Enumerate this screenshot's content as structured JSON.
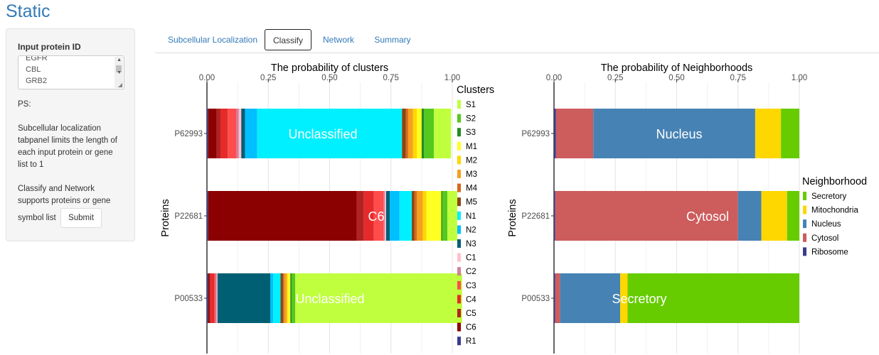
{
  "app": {
    "title": "Static"
  },
  "sidebar": {
    "input_label": "Input protein ID",
    "input_lines": [
      "EGFR",
      "CBL",
      "GRB2"
    ],
    "ps_label": "PS:",
    "note1_lines": [
      "Subcellular localization",
      "tabpanel limits the length of",
      "each input protein or gene",
      "list to 1"
    ],
    "note2_lines": [
      "Classify and Network",
      "supports proteins or gene",
      "symbol list"
    ],
    "submit_label": "Submit"
  },
  "tabs": [
    {
      "label": "Subcellular Localization",
      "active": false
    },
    {
      "label": "Classify",
      "active": true
    },
    {
      "label": "Network",
      "active": false
    },
    {
      "label": "Summary",
      "active": false
    }
  ],
  "chart_data": [
    {
      "type": "bar",
      "orientation": "horizontal",
      "stacked": true,
      "title": "The probability of clusters",
      "ylabel": "Proteins",
      "categories": [
        "P62993",
        "P22681",
        "P00533"
      ],
      "xlim": [
        0,
        1
      ],
      "xticks": [
        "0.00",
        "0.25",
        "0.50",
        "0.75",
        "1.00"
      ],
      "legend": {
        "title": "Clusters",
        "position": "right"
      },
      "series_colors": {
        "R1": "#3b3b8c",
        "C6": "#8b0000",
        "C5": "#b22222",
        "C4": "#e62a2a",
        "C3": "#ff4c4c",
        "C2": "#d27fa0",
        "C1": "#ffc0cb",
        "N3": "#005f73",
        "N2": "#00bfff",
        "N1": "#00f0ff",
        "M5": "#8b4513",
        "M4": "#d2691e",
        "M3": "#f4a020",
        "M2": "#ffd700",
        "M1": "#ffff22",
        "S3": "#228b22",
        "S2": "#55c81e",
        "S1": "#c0ff3e"
      },
      "legend_order": [
        "S1",
        "S2",
        "S3",
        "M1",
        "M2",
        "M3",
        "M4",
        "M5",
        "N1",
        "N2",
        "N3",
        "C1",
        "C2",
        "C3",
        "C4",
        "C5",
        "C6",
        "R1"
      ],
      "bars": [
        {
          "category": "P62993",
          "label": "Unclassified",
          "segments": [
            [
              "R1",
              0.005
            ],
            [
              "C6",
              0.035
            ],
            [
              "C5",
              0.015
            ],
            [
              "C4",
              0.03
            ],
            [
              "C3",
              0.035
            ],
            [
              "C2",
              0.01
            ],
            [
              "C1",
              0.01
            ],
            [
              "N3",
              0.015
            ],
            [
              "N2",
              0.05
            ],
            [
              "N1",
              0.59
            ],
            [
              "M5",
              0.015
            ],
            [
              "M4",
              0.01
            ],
            [
              "M3",
              0.02
            ],
            [
              "M2",
              0.015
            ],
            [
              "M1",
              0.02
            ],
            [
              "S3",
              0.01
            ],
            [
              "S2",
              0.04
            ],
            [
              "S1",
              0.07
            ]
          ]
        },
        {
          "category": "P22681",
          "label": "C6",
          "segments": [
            [
              "R1",
              0.005
            ],
            [
              "C6",
              0.605
            ],
            [
              "C5",
              0.03
            ],
            [
              "C4",
              0.04
            ],
            [
              "C3",
              0.04
            ],
            [
              "C2",
              0.005
            ],
            [
              "C1",
              0.005
            ],
            [
              "N3",
              0.015
            ],
            [
              "N2",
              0.04
            ],
            [
              "N1",
              0.05
            ],
            [
              "M5",
              0.01
            ],
            [
              "M4",
              0.01
            ],
            [
              "M3",
              0.025
            ],
            [
              "M2",
              0.015
            ],
            [
              "M1",
              0.06
            ],
            [
              "S3",
              0.005
            ],
            [
              "S2",
              0.02
            ],
            [
              "S1",
              0.04
            ]
          ]
        },
        {
          "category": "P00533",
          "label": "Unclassified",
          "segments": [
            [
              "R1",
              0.005
            ],
            [
              "C6",
              0.005
            ],
            [
              "C5",
              0.005
            ],
            [
              "C4",
              0.015
            ],
            [
              "C3",
              0.005
            ],
            [
              "C2",
              0.005
            ],
            [
              "C1",
              0.003
            ],
            [
              "N3",
              0.215
            ],
            [
              "N2",
              0.012
            ],
            [
              "N1",
              0.03
            ],
            [
              "M5",
              0.01
            ],
            [
              "M4",
              0.005
            ],
            [
              "M3",
              0.01
            ],
            [
              "M2",
              0.005
            ],
            [
              "M1",
              0.01
            ],
            [
              "S3",
              0.005
            ],
            [
              "S2",
              0.015
            ],
            [
              "S1",
              0.68
            ]
          ]
        }
      ]
    },
    {
      "type": "bar",
      "orientation": "horizontal",
      "stacked": true,
      "title": "The probability of Neighborhoods",
      "ylabel": "Proteins",
      "categories": [
        "P62993",
        "P22681",
        "P00533"
      ],
      "xlim": [
        0,
        1
      ],
      "xticks": [
        "0.00",
        "0.25",
        "0.50",
        "0.75",
        "1.00"
      ],
      "legend": {
        "title": "Neighborhood",
        "position": "right"
      },
      "series_colors": {
        "Ribosome": "#3b3b8c",
        "Cytosol": "#cd5c5c",
        "Nucleus": "#4682b4",
        "Mitochondria": "#ffd700",
        "Secretory": "#66cc00"
      },
      "legend_order": [
        "Secretory",
        "Mitochondria",
        "Nucleus",
        "Cytosol",
        "Ribosome"
      ],
      "bars": [
        {
          "category": "P62993",
          "label": "Nucleus",
          "segments": [
            [
              "Ribosome",
              0.008
            ],
            [
              "Cytosol",
              0.152
            ],
            [
              "Nucleus",
              0.66
            ],
            [
              "Mitochondria",
              0.105
            ],
            [
              "Secretory",
              0.075
            ]
          ]
        },
        {
          "category": "P22681",
          "label": "Cytosol",
          "segments": [
            [
              "Ribosome",
              0.005
            ],
            [
              "Cytosol",
              0.745
            ],
            [
              "Nucleus",
              0.095
            ],
            [
              "Mitochondria",
              0.105
            ],
            [
              "Secretory",
              0.05
            ]
          ]
        },
        {
          "category": "P00533",
          "label": "Secretory",
          "segments": [
            [
              "Ribosome",
              0.005
            ],
            [
              "Cytosol",
              0.02
            ],
            [
              "Nucleus",
              0.245
            ],
            [
              "Mitochondria",
              0.03
            ],
            [
              "Secretory",
              0.7
            ]
          ]
        }
      ]
    }
  ]
}
